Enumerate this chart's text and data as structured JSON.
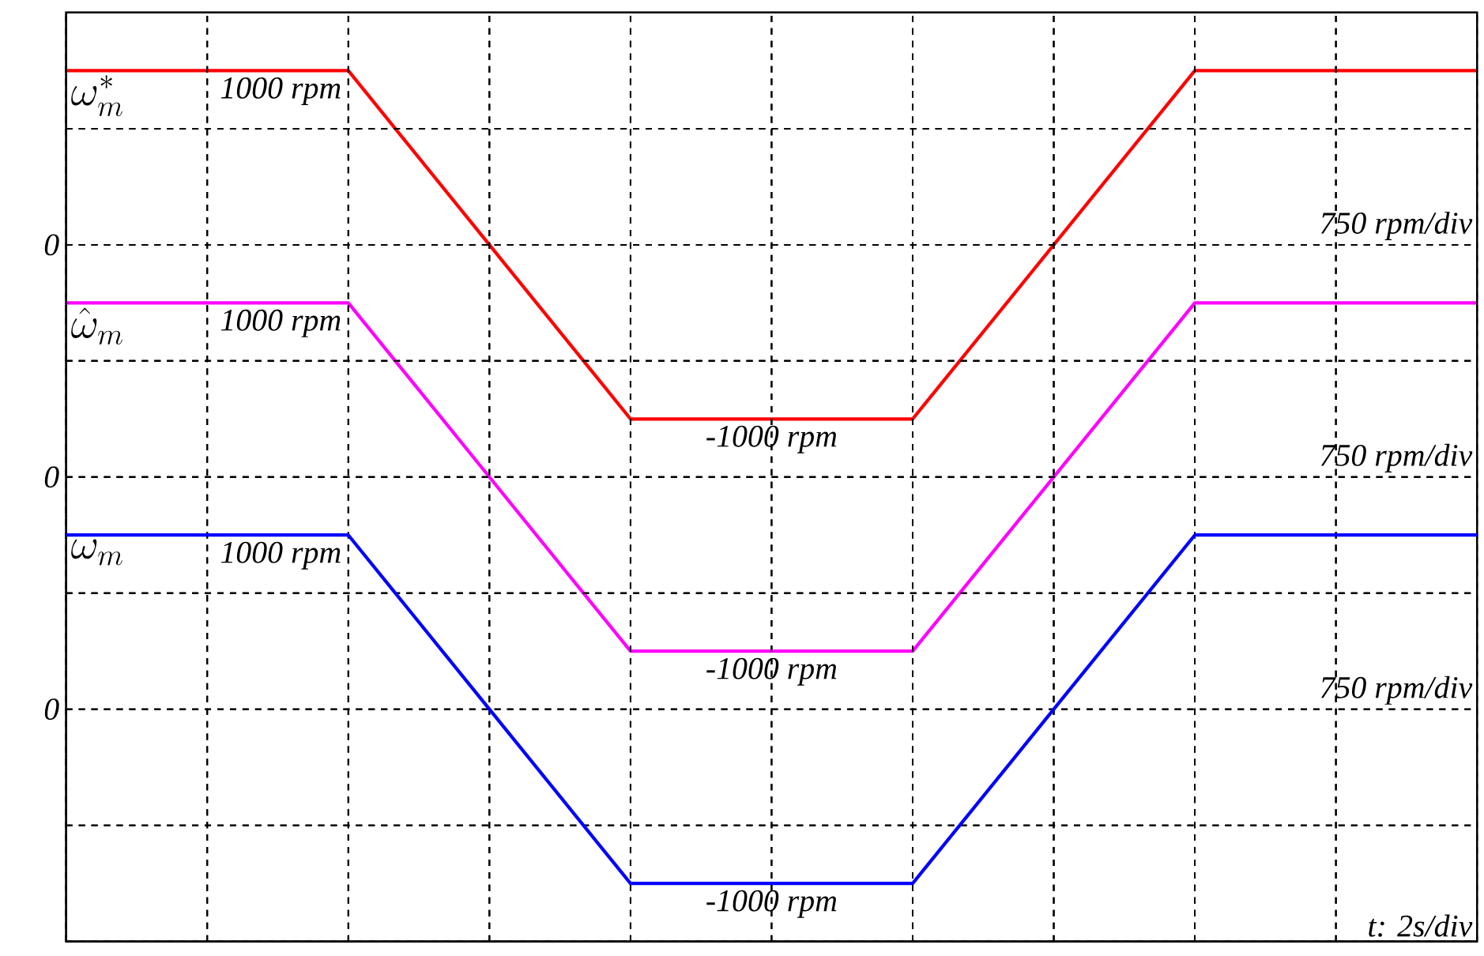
{
  "chart_data": [
    {
      "type": "line",
      "categories": [
        null,
        null,
        null,
        null,
        null,
        null,
        null,
        null,
        null,
        null,
        null
      ],
      "grid": true,
      "line_style": "solid",
      "marker": "none",
      "series": [
        {
          "name": "\\omega_m^*",
          "color": "#ff0000",
          "values": [
            1000,
            1000,
            1000,
            0,
            -1000,
            -1000,
            -1000,
            0,
            1000,
            1000,
            1000
          ],
          "value_labels": [
            null,
            null,
            "1000 rpm",
            null,
            null,
            "-1000 rpm",
            null,
            null,
            null,
            null,
            null
          ]
        }
      ],
      "annotations": [
        "0",
        "750 rpm/div"
      ]
    },
    {
      "type": "line",
      "categories": [
        null,
        null,
        null,
        null,
        null,
        null,
        null,
        null,
        null,
        null,
        null
      ],
      "grid": true,
      "line_style": "solid",
      "marker": "none",
      "series": [
        {
          "name": "\\hat{\\omega}_m",
          "color": "#ff00ff",
          "values": [
            1000,
            1000,
            1000,
            0,
            -1000,
            -1000,
            -1000,
            0,
            1000,
            1000,
            1000
          ],
          "value_labels": [
            null,
            null,
            "1000 rpm",
            null,
            null,
            "-1000 rpm",
            null,
            null,
            null,
            null,
            null
          ]
        }
      ],
      "annotations": [
        "0",
        "750 rpm/div"
      ]
    },
    {
      "type": "line",
      "categories": [
        null,
        null,
        null,
        null,
        null,
        null,
        null,
        null,
        null,
        null,
        null
      ],
      "grid": true,
      "line_style": "solid",
      "marker": "none",
      "series": [
        {
          "name": "\\omega_m",
          "color": "#0000ff",
          "values": [
            1000,
            1000,
            1000,
            0,
            -1000,
            -1000,
            -1000,
            0,
            1000,
            1000,
            1000
          ],
          "value_labels": [
            null,
            null,
            "1000 rpm",
            null,
            null,
            "-1000 rpm",
            null,
            null,
            null,
            null,
            null
          ]
        }
      ],
      "annotations": [
        "0",
        "750 rpm/div",
        "t: 2s/div"
      ]
    }
  ]
}
